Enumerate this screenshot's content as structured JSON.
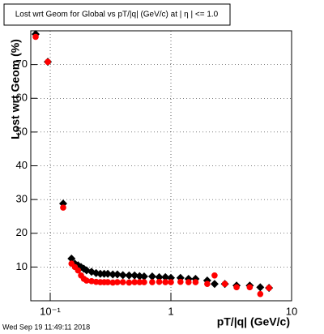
{
  "chart_data": {
    "type": "scatter",
    "title": "Lost wrt Geom for Global vs pT/|q| (GeV/c) at |  η | <= 1.0",
    "x_label": "pT/|q| (GeV/c)",
    "y_label": "Lost wrt Geom (%)",
    "footer": "Wed Sep 19 11:49:11 2018",
    "x_log": true,
    "grid": true,
    "xlim": [
      0.069,
      10
    ],
    "ylim": [
      0,
      80
    ],
    "xticks": [
      {
        "value": 0.1,
        "label": "10⁻¹"
      },
      1,
      10
    ],
    "yticks": [
      10,
      20,
      30,
      40,
      50,
      60,
      70
    ],
    "x": [
      0.0757,
      0.0955,
      0.128,
      0.15,
      0.16,
      0.17,
      0.18,
      0.19,
      0.2,
      0.22,
      0.24,
      0.26,
      0.28,
      0.3,
      0.33,
      0.36,
      0.4,
      0.45,
      0.5,
      0.55,
      0.6,
      0.7,
      0.8,
      0.9,
      1.0,
      1.2,
      1.4,
      1.6,
      2.0,
      2.3,
      2.8,
      3.5,
      4.5,
      5.5,
      6.5
    ],
    "series": [
      {
        "color": "#000000",
        "marker": "diamond",
        "values": [
          79,
          70.8,
          28.8,
          12.5,
          11,
          10.5,
          10,
          9.5,
          9,
          8.6,
          8.2,
          8,
          8,
          8,
          7.8,
          7.8,
          7.6,
          7.5,
          7.5,
          7.3,
          7.2,
          7.2,
          7,
          7,
          6.8,
          6.8,
          6.5,
          6.5,
          6,
          5,
          5,
          4.5,
          4.5,
          4,
          3.8
        ]
      },
      {
        "color": "#ff0000",
        "marker": "circle",
        "values": [
          78.2,
          70.8,
          27.6,
          11,
          10,
          9,
          7.5,
          6.5,
          6,
          5.8,
          5.6,
          5.5,
          5.5,
          5.5,
          5.4,
          5.5,
          5.5,
          5.4,
          5.5,
          5.5,
          5.5,
          5.5,
          5.6,
          5.5,
          5.5,
          5.6,
          5.5,
          5.5,
          5,
          7.5,
          5,
          4,
          4,
          2,
          3.8
        ]
      }
    ]
  }
}
